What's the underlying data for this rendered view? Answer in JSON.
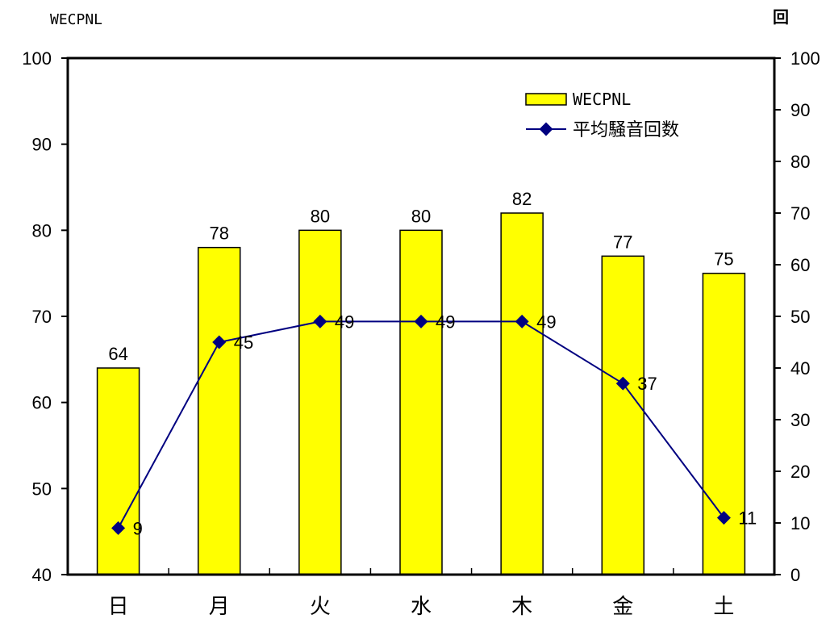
{
  "chart_data": {
    "type": "bar",
    "categories": [
      "日",
      "月",
      "火",
      "水",
      "木",
      "金",
      "土"
    ],
    "series": [
      {
        "name": "WECPNL",
        "type": "bar",
        "axis": "left",
        "values": [
          64,
          78,
          80,
          80,
          82,
          77,
          75
        ],
        "color": "#FFFF00"
      },
      {
        "name": "平均騒音回数",
        "type": "line",
        "axis": "right",
        "values": [
          9,
          45,
          49,
          49,
          49,
          37,
          11
        ],
        "color": "#000080"
      }
    ],
    "ylabel_left": "WECPNL",
    "ylabel_right": "回",
    "ylim_left": [
      40,
      100
    ],
    "yticks_left": [
      40,
      50,
      60,
      70,
      80,
      90,
      100
    ],
    "ylim_right": [
      0,
      100
    ],
    "yticks_right": [
      0,
      10,
      20,
      30,
      40,
      50,
      60,
      70,
      80,
      90,
      100
    ],
    "grid": false,
    "legend_position": "top-right"
  }
}
